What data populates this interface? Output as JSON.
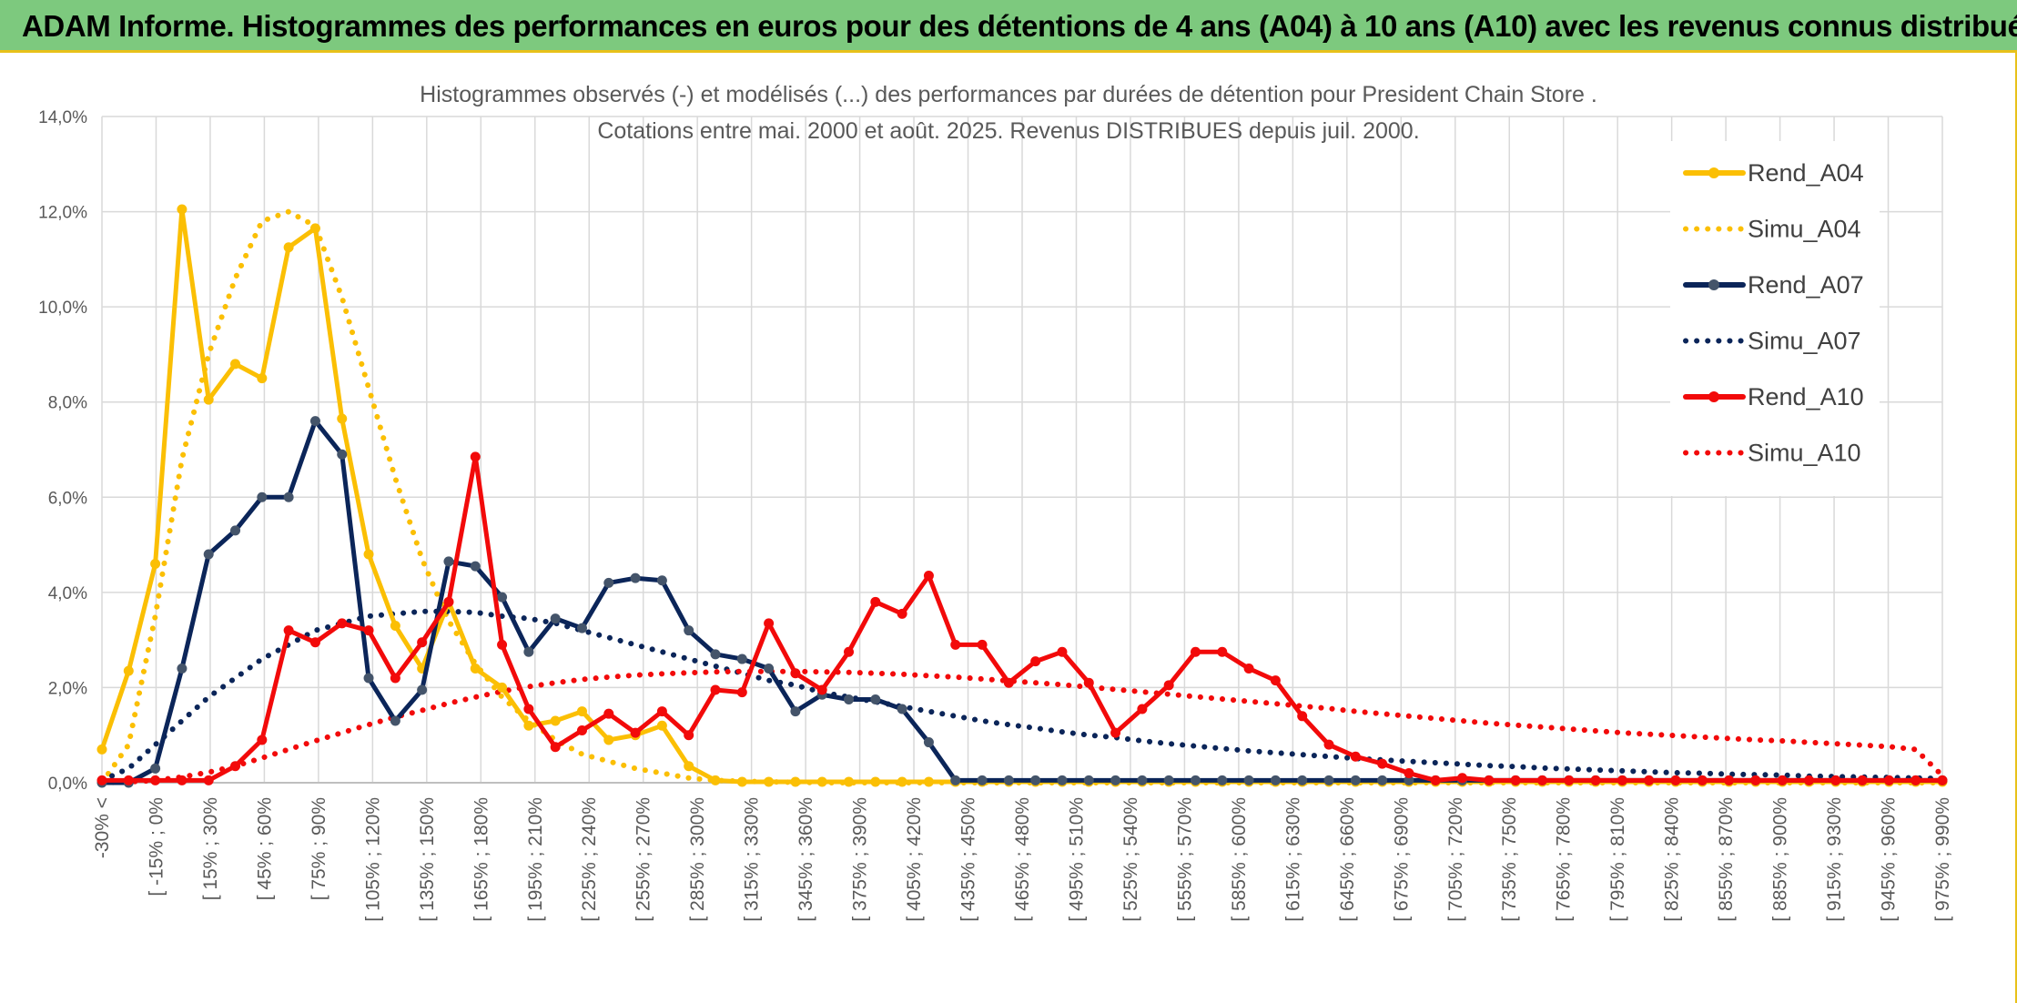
{
  "banner": {
    "title": "ADAM Informe. Histogrammes des performances en euros pour des détentions de 4 ans (A04) à 10 ans (A10) avec les revenus connus distribués"
  },
  "colors": {
    "banner_bg": "#7dc97e",
    "frame_accent": "#e8c11a",
    "A04": "#fbbf04",
    "A07": "#0b2559",
    "A10": "#f20a0a",
    "grid": "#d9d9d9"
  },
  "chart_data": {
    "type": "line",
    "title": "Histogrammes observés (-) et modélisés (...) des performances par durées de détention pour President Chain Store .",
    "subtitle": "Cotations entre mai. 2000 et août. 2025. Revenus DISTRIBUES depuis juil. 2000.",
    "xlabel": "",
    "ylabel": "",
    "ylim": [
      0,
      14
    ],
    "y_ticks": [
      "0,0%",
      "2,0%",
      "4,0%",
      "6,0%",
      "8,0%",
      "10,0%",
      "12,0%",
      "14,0%"
    ],
    "grid": true,
    "legend_position": "top-right",
    "x_tick_labels": [
      "-30% <",
      "[ -15% ; 0%",
      "[ 15% ; 30%",
      "[ 45% ; 60%",
      "[ 75% ; 90%",
      "[ 105% ; 120%",
      "[ 135% ; 150%",
      "[ 165% ; 180%",
      "[ 195% ; 210%",
      "[ 225% ; 240%",
      "[ 255% ; 270%",
      "[ 285% ; 300%",
      "[ 315% ; 330%",
      "[ 345% ; 360%",
      "[ 375% ; 390%",
      "[ 405% ; 420%",
      "[ 435% ; 450%",
      "[ 465% ; 480%",
      "[ 495% ; 510%",
      "[ 525% ; 540%",
      "[ 555% ; 570%",
      "[ 585% ; 600%",
      "[ 615% ; 630%",
      "[ 645% ; 660%",
      "[ 675% ; 690%",
      "[ 705% ; 720%",
      "[ 735% ; 750%",
      "[ 765% ; 780%",
      "[ 795% ; 810%",
      "[ 825% ; 840%",
      "[ 855% ; 870%",
      "[ 885% ; 900%",
      "[ 915% ; 930%",
      "[ 945% ; 960%",
      "[ 975% ; 990%"
    ],
    "series": [
      {
        "name": "Rend_A04",
        "style": "solid",
        "color": "#fbbf04",
        "values": [
          0.7,
          2.35,
          4.6,
          12.05,
          8.05,
          8.8,
          8.5,
          11.25,
          11.65,
          7.65,
          4.8,
          3.3,
          2.4,
          3.8,
          2.4,
          2.0,
          1.2,
          1.3,
          1.5,
          0.9,
          1.0,
          1.2,
          0.35,
          0.05,
          0.02,
          0.02,
          0.02,
          0.02,
          0.02,
          0.02,
          0.02,
          0.02,
          0.02,
          0.02,
          0.02,
          0.02,
          0.02,
          0.02,
          0.02,
          0.02,
          0.02,
          0.02,
          0.02,
          0.02,
          0.02,
          0.02,
          0.02,
          0.02,
          0.02,
          0.02,
          0.02,
          0.02,
          0.02,
          0.02,
          0.02,
          0.02,
          0.02,
          0.02,
          0.02,
          0.02,
          0.02,
          0.02,
          0.02,
          0.02,
          0.02,
          0.02,
          0.02,
          0.02,
          0.02,
          0.02
        ]
      },
      {
        "name": "Simu_A04",
        "style": "dotted",
        "color": "#fbbf04",
        "values": [
          0.0,
          0.8,
          3.5,
          6.8,
          9.0,
          10.6,
          11.8,
          12.0,
          11.7,
          10.2,
          8.3,
          6.4,
          4.7,
          3.4,
          2.5,
          1.8,
          1.3,
          0.9,
          0.6,
          0.45,
          0.3,
          0.2,
          0.1,
          0.05,
          0.03,
          0.02,
          0.01,
          0.0,
          0.0,
          0.0,
          0.0,
          0.0,
          0.0,
          0.0,
          0.0,
          0.0,
          0.0,
          0.0,
          0.0,
          0.0,
          0.0,
          0.0,
          0.0,
          0.0,
          0.0,
          0.0,
          0.0,
          0.0,
          0.0,
          0.0,
          0.0,
          0.0,
          0.0,
          0.0,
          0.0,
          0.0,
          0.0,
          0.0,
          0.0,
          0.0,
          0.0,
          0.0,
          0.0,
          0.0,
          0.0,
          0.0,
          0.0,
          0.0,
          0.0,
          0.0
        ]
      },
      {
        "name": "Rend_A07",
        "style": "solid",
        "color": "#0b2559",
        "values": [
          0.0,
          0.0,
          0.3,
          2.4,
          4.8,
          5.3,
          6.0,
          6.0,
          7.6,
          6.9,
          2.2,
          1.3,
          1.95,
          4.65,
          4.55,
          3.9,
          2.75,
          3.45,
          3.25,
          4.2,
          4.3,
          4.25,
          3.2,
          2.7,
          2.6,
          2.4,
          1.5,
          1.85,
          1.75,
          1.75,
          1.55,
          0.85,
          0.05,
          0.05,
          0.05,
          0.05,
          0.05,
          0.05,
          0.05,
          0.05,
          0.05,
          0.05,
          0.05,
          0.05,
          0.05,
          0.05,
          0.05,
          0.05,
          0.05,
          0.05,
          0.05,
          0.05,
          0.05,
          0.05,
          0.05,
          0.05,
          0.05,
          0.05,
          0.05,
          0.05,
          0.05,
          0.05,
          0.05,
          0.05,
          0.05,
          0.05,
          0.05,
          0.05,
          0.05,
          0.05
        ]
      },
      {
        "name": "Simu_A07",
        "style": "dotted",
        "color": "#0b2559",
        "values": [
          0.05,
          0.3,
          0.8,
          1.3,
          1.8,
          2.2,
          2.6,
          2.9,
          3.2,
          3.35,
          3.5,
          3.55,
          3.6,
          3.6,
          3.58,
          3.5,
          3.45,
          3.35,
          3.2,
          3.05,
          2.9,
          2.75,
          2.6,
          2.45,
          2.3,
          2.15,
          2.05,
          1.9,
          1.8,
          1.7,
          1.6,
          1.5,
          1.4,
          1.3,
          1.22,
          1.15,
          1.07,
          1.0,
          0.95,
          0.88,
          0.82,
          0.77,
          0.72,
          0.67,
          0.63,
          0.59,
          0.55,
          0.51,
          0.48,
          0.45,
          0.42,
          0.39,
          0.36,
          0.34,
          0.31,
          0.29,
          0.27,
          0.25,
          0.23,
          0.21,
          0.2,
          0.18,
          0.17,
          0.16,
          0.14,
          0.13,
          0.12,
          0.11,
          0.1,
          0.09
        ]
      },
      {
        "name": "Rend_A10",
        "style": "solid",
        "color": "#f20a0a",
        "values": [
          0.05,
          0.05,
          0.05,
          0.05,
          0.05,
          0.35,
          0.9,
          3.2,
          2.95,
          3.35,
          3.2,
          2.2,
          2.95,
          3.8,
          6.85,
          2.9,
          1.55,
          0.75,
          1.1,
          1.45,
          1.05,
          1.5,
          1.0,
          1.95,
          1.9,
          3.35,
          2.3,
          1.95,
          2.75,
          3.8,
          3.55,
          4.35,
          2.9,
          2.9,
          2.1,
          2.55,
          2.75,
          2.1,
          1.05,
          1.55,
          2.05,
          2.75,
          2.75,
          2.4,
          2.15,
          1.4,
          0.8,
          0.55,
          0.4,
          0.2,
          0.05,
          0.1,
          0.05,
          0.05,
          0.05,
          0.05,
          0.05,
          0.05,
          0.05,
          0.05,
          0.05,
          0.05,
          0.05,
          0.05,
          0.05,
          0.05,
          0.05,
          0.05,
          0.05,
          0.05
        ]
      },
      {
        "name": "Simu_A10",
        "style": "dotted",
        "color": "#f20a0a",
        "values": [
          0.0,
          0.02,
          0.05,
          0.12,
          0.22,
          0.35,
          0.52,
          0.7,
          0.88,
          1.05,
          1.22,
          1.38,
          1.52,
          1.67,
          1.8,
          1.92,
          2.02,
          2.1,
          2.17,
          2.22,
          2.26,
          2.29,
          2.31,
          2.33,
          2.34,
          2.34,
          2.34,
          2.33,
          2.32,
          2.3,
          2.28,
          2.25,
          2.22,
          2.18,
          2.14,
          2.1,
          2.06,
          2.01,
          1.96,
          1.91,
          1.86,
          1.81,
          1.76,
          1.71,
          1.66,
          1.61,
          1.56,
          1.5,
          1.45,
          1.4,
          1.35,
          1.3,
          1.25,
          1.21,
          1.17,
          1.13,
          1.09,
          1.05,
          1.02,
          0.99,
          0.96,
          0.93,
          0.9,
          0.88,
          0.85,
          0.82,
          0.79,
          0.76,
          0.7,
          0.15
        ]
      }
    ]
  }
}
